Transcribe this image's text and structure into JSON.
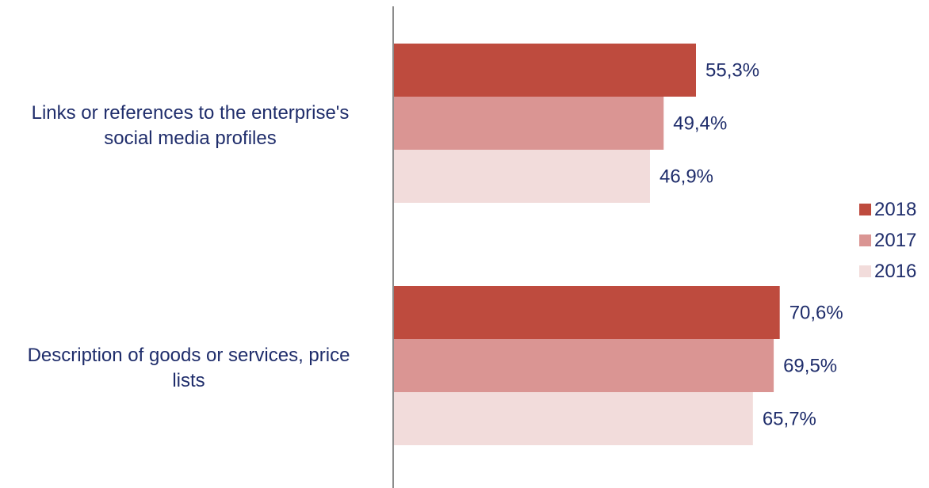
{
  "chart_data": {
    "type": "bar",
    "orientation": "horizontal",
    "categories": [
      [
        "Links or references to the enterprise's",
        "social media profiles"
      ],
      [
        "Description of goods or services, price",
        "lists"
      ]
    ],
    "series": [
      {
        "name": "2018",
        "color": "#be4b3e",
        "values": [
          55.3,
          70.6
        ]
      },
      {
        "name": "2017",
        "color": "#da9593",
        "values": [
          49.4,
          69.5
        ]
      },
      {
        "name": "2016",
        "color": "#f2dcdb",
        "values": [
          46.9,
          65.7
        ]
      }
    ],
    "data_labels": [
      [
        "55,3%",
        "70,6%"
      ],
      [
        "49,4%",
        "69,5%"
      ],
      [
        "46,9%",
        "65,7%"
      ]
    ],
    "xlim": [
      0,
      100
    ],
    "grid": false,
    "legend_position": "right",
    "label_color": "#1f2d6b",
    "axis_color": "#8c8c8c"
  }
}
